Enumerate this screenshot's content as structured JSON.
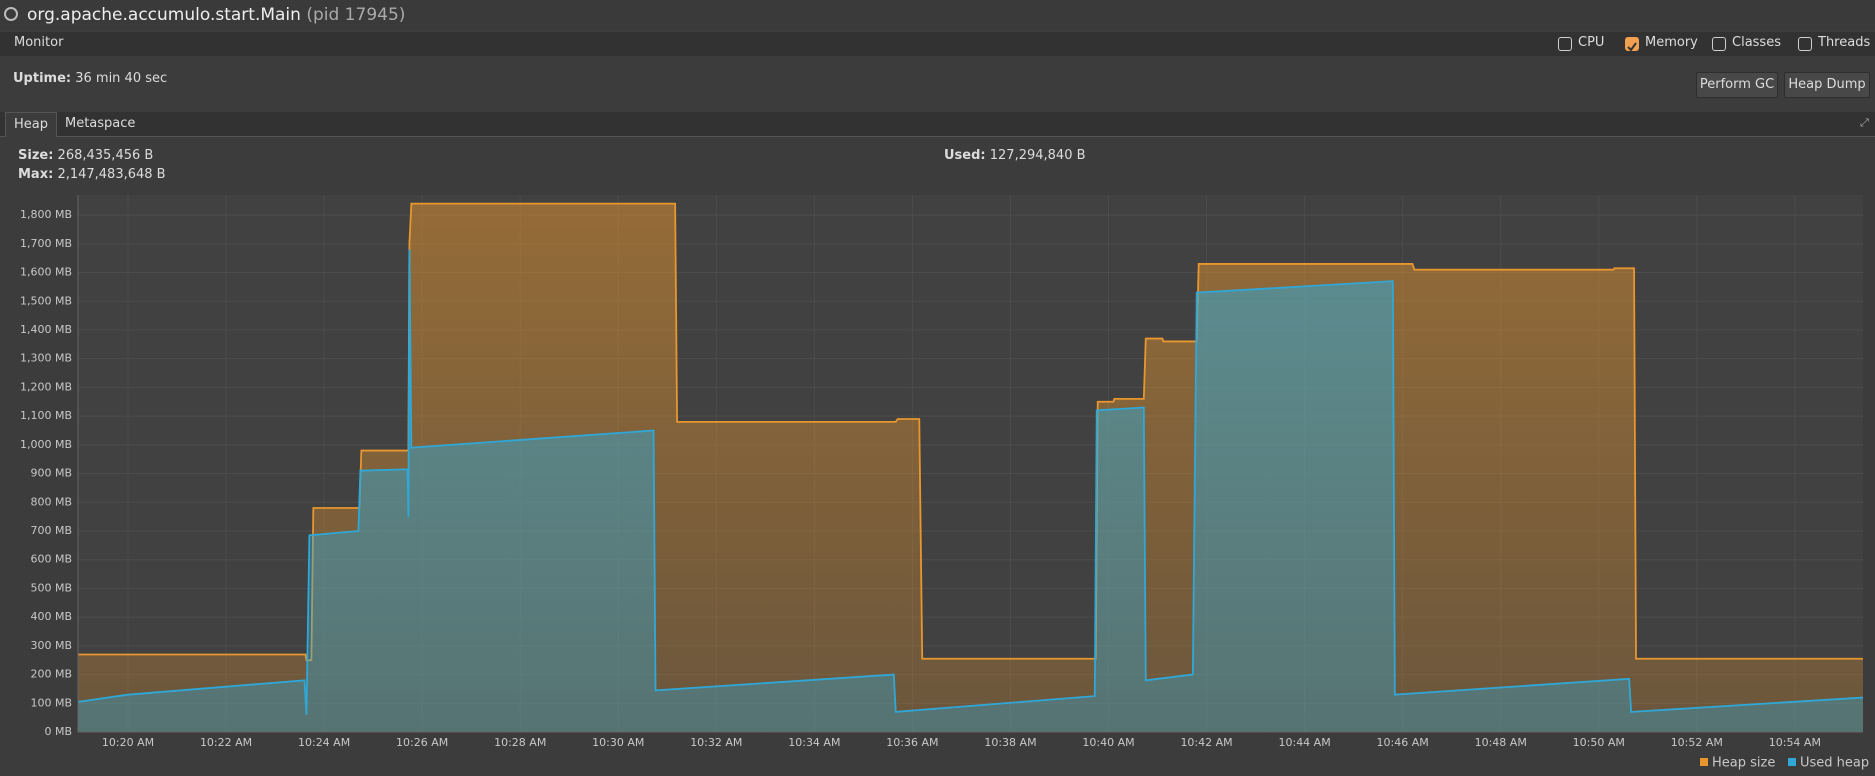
{
  "header": {
    "title": "org.apache.accumulo.start.Main",
    "pid": "(pid 17945)"
  },
  "toolbar": {
    "label": "Monitor",
    "checkboxes": [
      {
        "label": "CPU",
        "checked": false
      },
      {
        "label": "Memory",
        "checked": true
      },
      {
        "label": "Classes",
        "checked": false
      },
      {
        "label": "Threads",
        "checked": false
      }
    ]
  },
  "uptime": {
    "label": "Uptime:",
    "value": "36 min 40 sec"
  },
  "buttons": [
    "Perform GC",
    "Heap Dump"
  ],
  "tabs": [
    "Heap",
    "Metaspace"
  ],
  "info": {
    "size_label": "Size:",
    "size": "268,435,456 B",
    "max_label": "Max:",
    "max": "2,147,483,648 B",
    "used_label": "Used:",
    "used": "127,294,840 B"
  },
  "chart_data": {
    "type": "area",
    "xlim": [
      18.98,
      55.39
    ],
    "xticks": [
      {
        "value": 20,
        "label": "10:20 AM"
      },
      {
        "value": 22,
        "label": "10:22 AM"
      },
      {
        "value": 24,
        "label": "10:24 AM"
      },
      {
        "value": 26,
        "label": "10:26 AM"
      },
      {
        "value": 28,
        "label": "10:28 AM"
      },
      {
        "value": 30,
        "label": "10:30 AM"
      },
      {
        "value": 32,
        "label": "10:32 AM"
      },
      {
        "value": 34,
        "label": "10:34 AM"
      },
      {
        "value": 36,
        "label": "10:36 AM"
      },
      {
        "value": 38,
        "label": "10:38 AM"
      },
      {
        "value": 40,
        "label": "10:40 AM"
      },
      {
        "value": 42,
        "label": "10:42 AM"
      },
      {
        "value": 44,
        "label": "10:44 AM"
      },
      {
        "value": 46,
        "label": "10:46 AM"
      },
      {
        "value": 48,
        "label": "10:48 AM"
      },
      {
        "value": 50,
        "label": "10:50 AM"
      },
      {
        "value": 52,
        "label": "10:52 AM"
      },
      {
        "value": 54,
        "label": "10:54 AM"
      }
    ],
    "ylim": [
      0,
      1870
    ],
    "yticks": [
      {
        "value": 0,
        "label": "0 MB"
      },
      {
        "value": 100,
        "label": "100 MB"
      },
      {
        "value": 200,
        "label": "200 MB"
      },
      {
        "value": 300,
        "label": "300 MB"
      },
      {
        "value": 400,
        "label": "400 MB"
      },
      {
        "value": 500,
        "label": "500 MB"
      },
      {
        "value": 600,
        "label": "600 MB"
      },
      {
        "value": 700,
        "label": "700 MB"
      },
      {
        "value": 800,
        "label": "800 MB"
      },
      {
        "value": 900,
        "label": "900 MB"
      },
      {
        "value": 1000,
        "label": "1,000 MB"
      },
      {
        "value": 1100,
        "label": "1,100 MB"
      },
      {
        "value": 1200,
        "label": "1,200 MB"
      },
      {
        "value": 1300,
        "label": "1,300 MB"
      },
      {
        "value": 1400,
        "label": "1,400 MB"
      },
      {
        "value": 1500,
        "label": "1,500 MB"
      },
      {
        "value": 1600,
        "label": "1,600 MB"
      },
      {
        "value": 1700,
        "label": "1,700 MB"
      },
      {
        "value": 1800,
        "label": "1,800 MB"
      }
    ],
    "grid": true,
    "series": [
      {
        "name": "Heap size",
        "color": "#e8962e",
        "x": [
          18.98,
          23.62,
          23.64,
          23.74,
          23.78,
          24.72,
          24.76,
          25.72,
          25.74,
          25.78,
          31.16,
          31.2,
          35.66,
          35.7,
          36.14,
          36.2,
          39.74,
          39.78,
          40.1,
          40.12,
          40.72,
          40.76,
          41.1,
          41.12,
          41.8,
          41.84,
          46.2,
          46.24,
          50.3,
          50.32,
          50.72,
          50.76,
          55.39
        ],
        "values": [
          270,
          270,
          250,
          250,
          780,
          780,
          980,
          980,
          1700,
          1840,
          1840,
          1080,
          1080,
          1090,
          1090,
          255,
          255,
          1150,
          1150,
          1160,
          1160,
          1370,
          1370,
          1360,
          1360,
          1630,
          1630,
          1610,
          1610,
          1615,
          1615,
          255,
          255
        ]
      },
      {
        "name": "Used heap",
        "color": "#2fa8d8",
        "x": [
          18.98,
          20,
          23.6,
          23.64,
          23.7,
          24.7,
          24.74,
          25.7,
          25.72,
          25.74,
          25.78,
          30.72,
          30.76,
          35.62,
          35.66,
          39.72,
          39.76,
          40.72,
          40.76,
          41.72,
          41.8,
          45.8,
          45.84,
          50.62,
          50.66,
          55.39
        ],
        "values": [
          105,
          130,
          180,
          60,
          685,
          700,
          910,
          915,
          750,
          1680,
          990,
          1050,
          145,
          200,
          70,
          125,
          1120,
          1130,
          180,
          200,
          1530,
          1570,
          130,
          185,
          70,
          120
        ]
      }
    ]
  }
}
